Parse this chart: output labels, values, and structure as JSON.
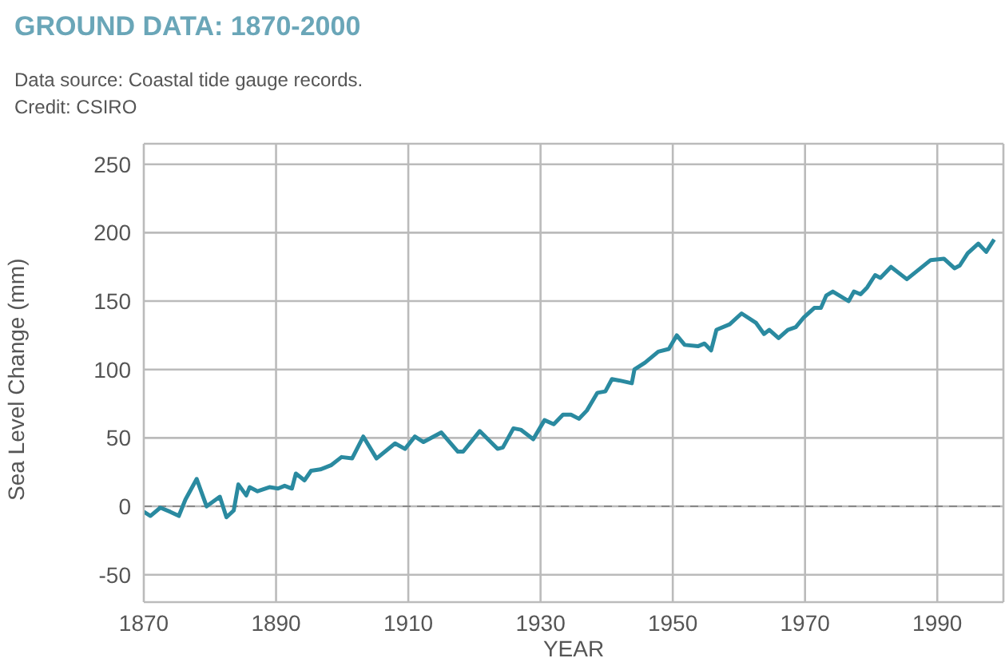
{
  "chart_data": {
    "type": "line",
    "title": "GROUND DATA: 1870-2000",
    "subtitle": "Data source: Coastal tide gauge records.",
    "annotations": [
      "Credit: CSIRO"
    ],
    "xlabel": "YEAR",
    "ylabel": "Sea Level Change (mm)",
    "x": [
      1870,
      1871,
      1872.5,
      1874,
      1875.3,
      1876.3,
      1878,
      1879.5,
      1881.5,
      1882.5,
      1883.6,
      1884.3,
      1885.5,
      1886,
      1887.2,
      1889,
      1890.3,
      1891.3,
      1892.4,
      1893,
      1894.3,
      1895.3,
      1896.7,
      1898.3,
      1899.9,
      1901.5,
      1903.2,
      1905.2,
      1908,
      1909.5,
      1911,
      1912.3,
      1915,
      1917.5,
      1918.3,
      1920.8,
      1923.5,
      1924.3,
      1925.9,
      1927,
      1928.9,
      1930.6,
      1932,
      1933.4,
      1934.6,
      1935.8,
      1937,
      1938.6,
      1939.8,
      1940.8,
      1941.9,
      1943.8,
      1944.2,
      1945.8,
      1947.8,
      1949.4,
      1950.6,
      1951.8,
      1953.8,
      1954.8,
      1955.8,
      1956.6,
      1958.6,
      1960.4,
      1962.6,
      1963.8,
      1964.6,
      1966,
      1967.4,
      1968.6,
      1969.8,
      1971.4,
      1972.4,
      1973.2,
      1974.2,
      1976.6,
      1977.4,
      1978.4,
      1979.4,
      1980.6,
      1981.4,
      1983,
      1985.4,
      1989,
      1991,
      1992.6,
      1993.4,
      1994.6,
      1996.2,
      1997.4,
      1998.6
    ],
    "series": [
      {
        "color": "#2a8aa0",
        "values": [
          -4,
          -7,
          -1,
          -4,
          -7,
          5,
          20,
          0,
          7,
          -8,
          -3,
          16,
          8,
          14,
          11,
          14,
          13,
          15,
          13,
          24,
          19,
          26,
          27,
          30,
          36,
          35,
          51,
          35,
          46,
          42,
          51,
          47,
          54,
          40,
          40,
          55,
          42,
          43,
          57,
          56,
          49,
          63,
          60,
          67,
          67,
          64,
          70,
          83,
          84,
          93,
          92,
          90,
          100,
          105,
          113,
          115,
          125,
          118,
          117,
          119,
          114,
          129,
          133,
          141,
          134,
          126,
          129,
          123,
          129,
          131,
          138,
          145,
          145,
          154,
          157,
          150,
          157,
          155,
          160,
          169,
          167,
          175,
          166,
          180,
          181,
          174,
          176,
          185,
          192,
          186,
          195
        ]
      }
    ],
    "xlim": [
      1870,
      2000
    ],
    "xticks": [
      1870,
      1890,
      1910,
      1930,
      1950,
      1970,
      1990
    ],
    "ylim": [
      -70,
      265
    ],
    "yticks": [
      -50,
      0,
      50,
      100,
      150,
      200,
      250
    ],
    "grid": true,
    "marker": "none",
    "line_style": "solid",
    "ref_lines": [
      {
        "axis": "y",
        "value": 0,
        "line_style": "dashed",
        "color": "#888888"
      }
    ]
  }
}
